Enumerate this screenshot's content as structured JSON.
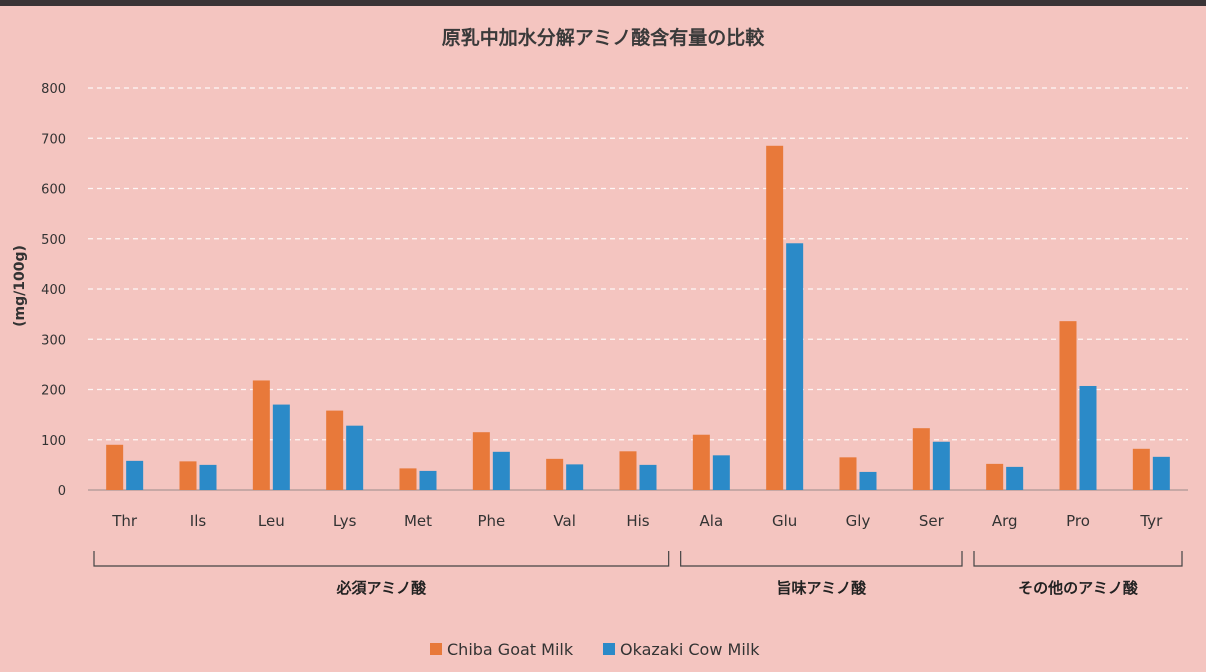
{
  "chart_data": {
    "type": "bar",
    "title": "原乳中加水分解アミノ酸含有量の比較",
    "ylabel": "(mg/100g)",
    "xlabel": "",
    "ylim": [
      0,
      800
    ],
    "yticks": [
      0,
      100,
      200,
      300,
      400,
      500,
      600,
      700,
      800
    ],
    "grid": true,
    "legend_position": "bottom",
    "categories": [
      "Thr",
      "Ils",
      "Leu",
      "Lys",
      "Met",
      "Phe",
      "Val",
      "His",
      "Ala",
      "Glu",
      "Gly",
      "Ser",
      "Arg",
      "Pro",
      "Tyr"
    ],
    "series": [
      {
        "name": "Chiba Goat Milk",
        "color": "#e8793a",
        "values": [
          90,
          57,
          218,
          158,
          43,
          115,
          62,
          77,
          110,
          685,
          65,
          123,
          52,
          336,
          82
        ]
      },
      {
        "name": "Okazaki Cow Milk",
        "color": "#2b8ac8",
        "values": [
          58,
          50,
          170,
          128,
          38,
          76,
          51,
          50,
          69,
          491,
          36,
          96,
          46,
          207,
          66
        ]
      }
    ],
    "groups": [
      {
        "label": "必須アミノ酸",
        "from": 0,
        "to": 7
      },
      {
        "label": "旨味アミノ酸",
        "from": 8,
        "to": 11
      },
      {
        "label": "その他のアミノ酸",
        "from": 12,
        "to": 14
      }
    ]
  }
}
